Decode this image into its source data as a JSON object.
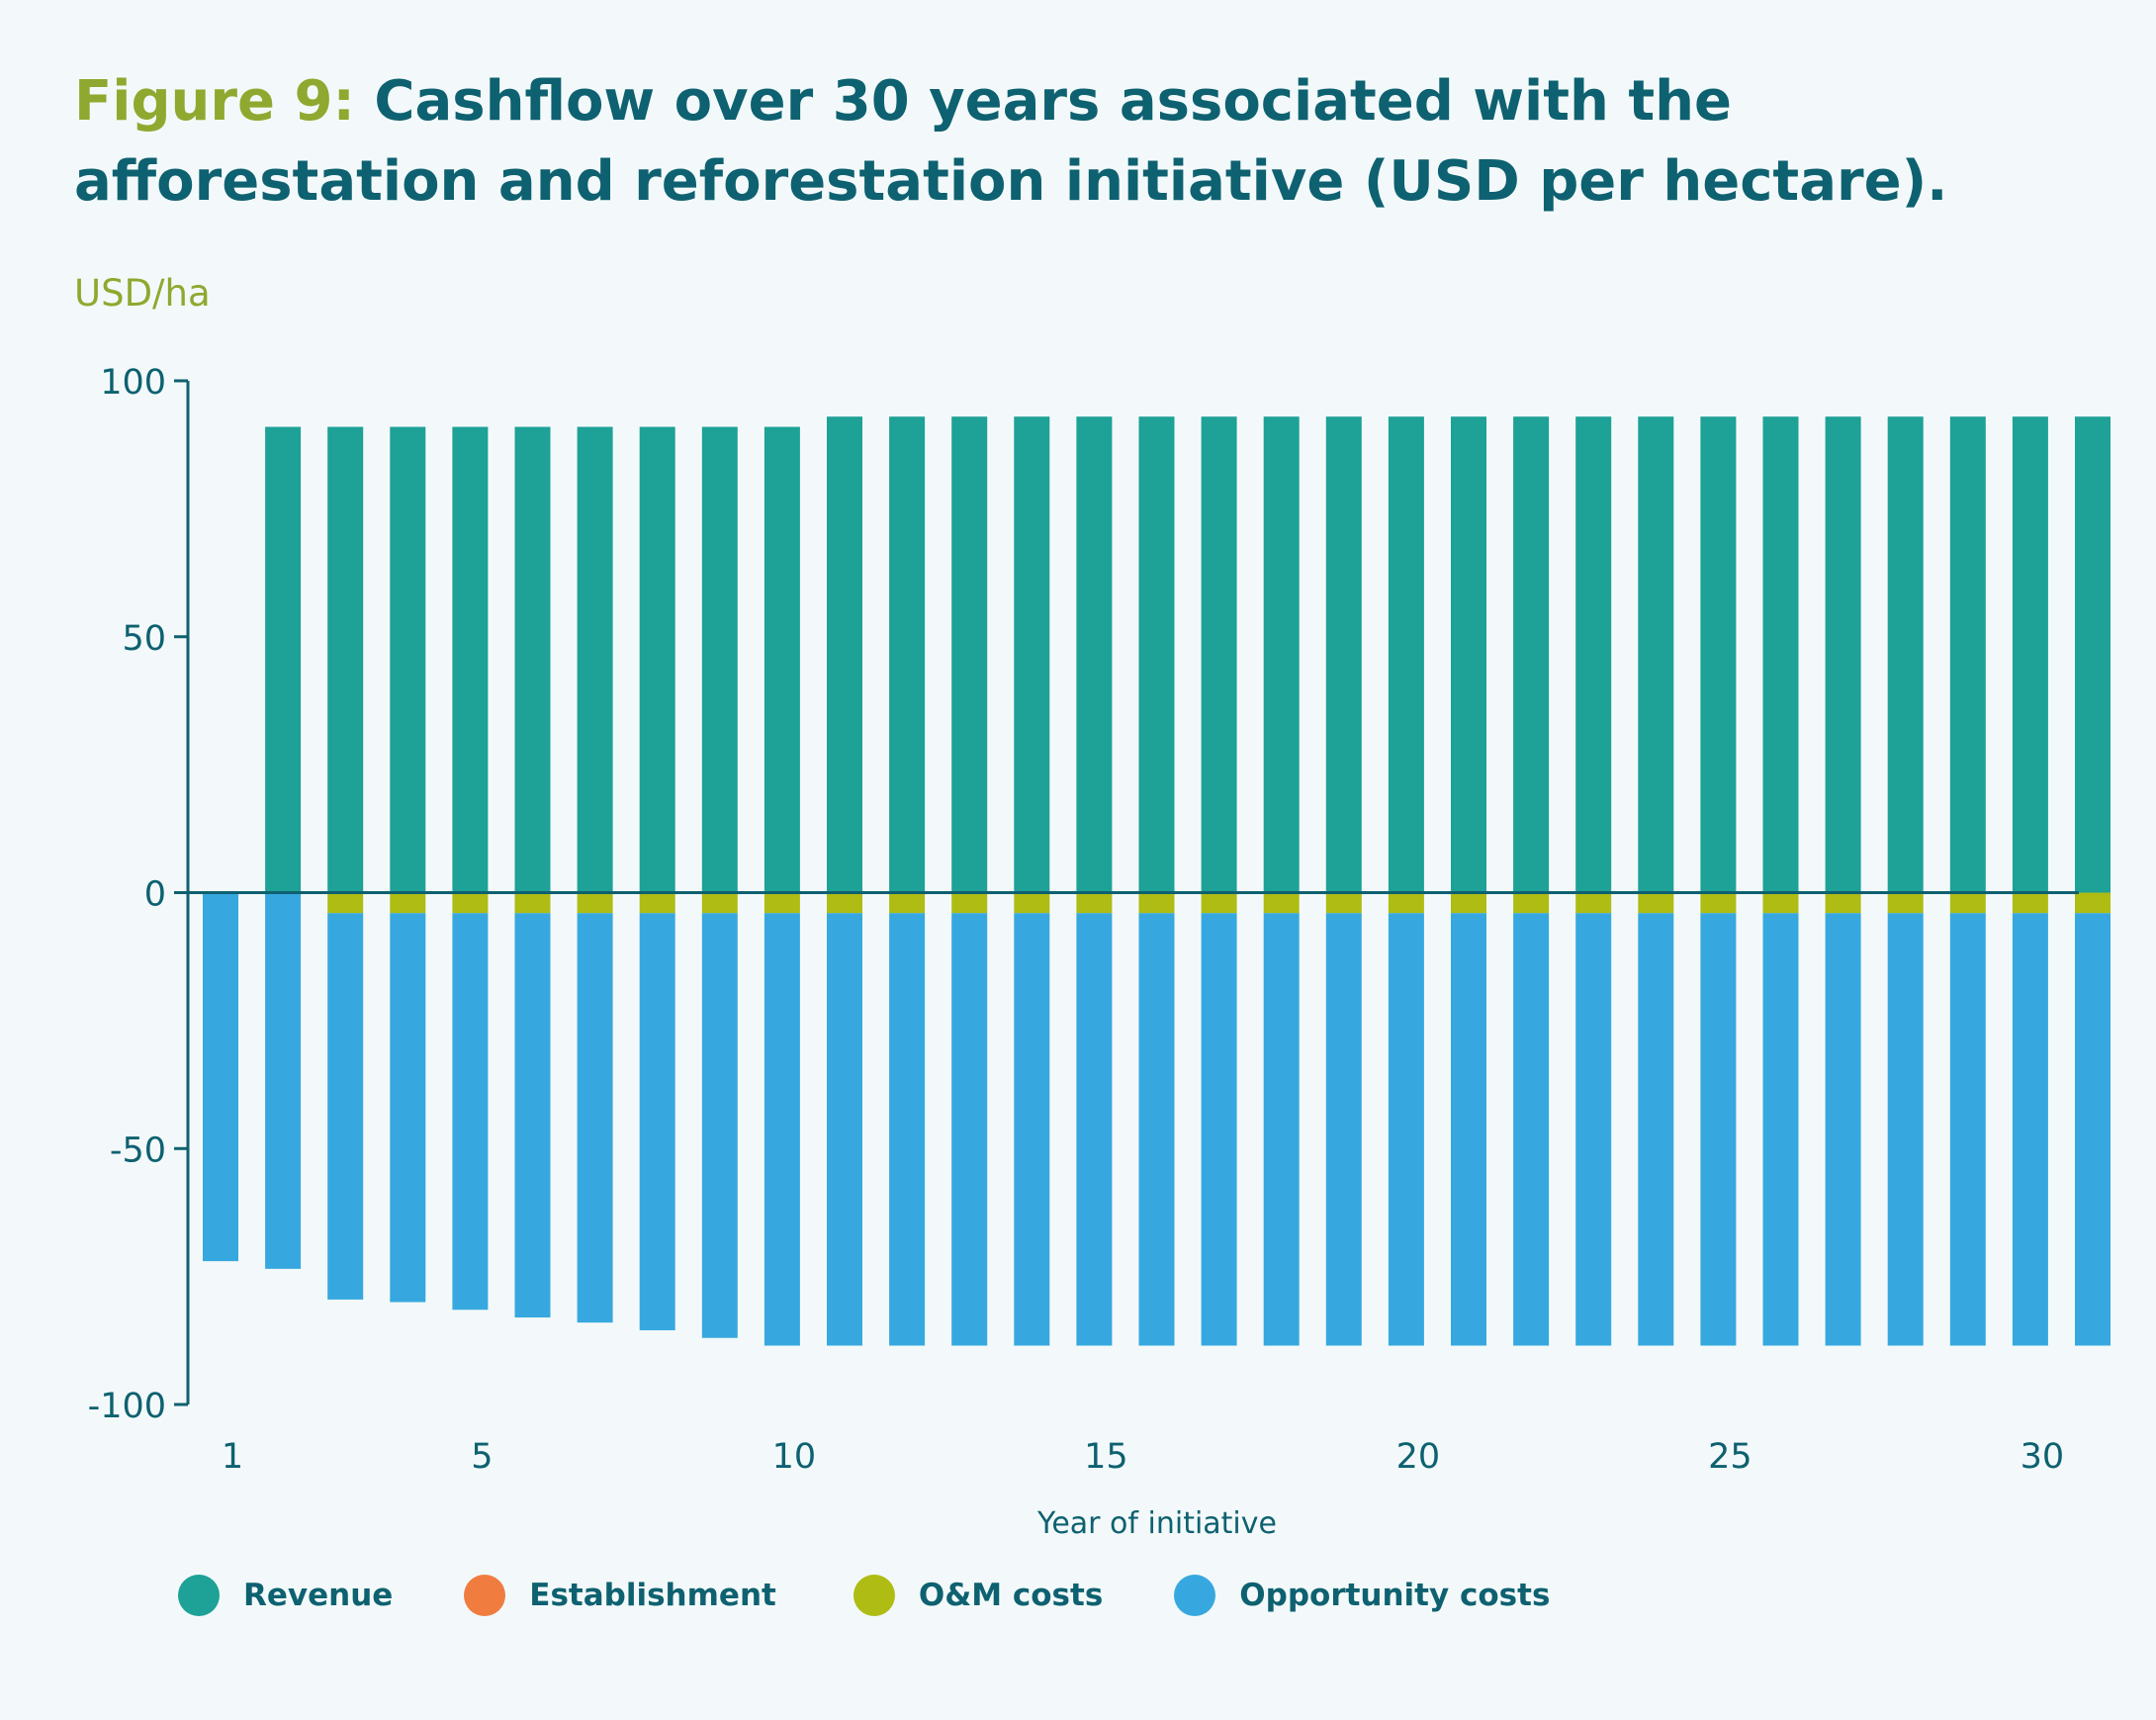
{
  "title": {
    "prefix": "Figure 9:",
    "text": "Cashflow over 30 years associated with the afforestation and reforestation initiative (USD per hectare)."
  },
  "colors": {
    "revenue": "#1ea196",
    "establishment": "#f07c40",
    "om": "#aebc14",
    "opportunity": "#37a8df",
    "axis": "#0e6170",
    "title_accent": "#8fa82f"
  },
  "chart_data": {
    "type": "bar",
    "stacked": true,
    "ylabel": "USD/ha",
    "xlabel": "Year of initiative",
    "ylim": [
      -100,
      100
    ],
    "yticks": [
      100,
      50,
      0,
      -50,
      -100
    ],
    "xticks": [
      1,
      5,
      10,
      15,
      20,
      25,
      30
    ],
    "x": [
      1,
      2,
      3,
      4,
      5,
      6,
      7,
      8,
      9,
      10,
      11,
      12,
      13,
      14,
      15,
      16,
      17,
      18,
      19,
      20,
      21,
      22,
      23,
      24,
      25,
      26,
      27,
      28,
      29,
      30,
      31
    ],
    "series": [
      {
        "name": "Revenue",
        "values": [
          0,
          91,
          91,
          91,
          91,
          91,
          91,
          91,
          91,
          91,
          93,
          93,
          93,
          93,
          93,
          93,
          93,
          93,
          93,
          93,
          93,
          93,
          93,
          93,
          93,
          93,
          93,
          93,
          93,
          93,
          93
        ]
      },
      {
        "name": "Establishment",
        "values": [
          0,
          0,
          0,
          0,
          0,
          0,
          0,
          0,
          0,
          0,
          0,
          0,
          0,
          0,
          0,
          0,
          0,
          0,
          0,
          0,
          0,
          0,
          0,
          0,
          0,
          0,
          0,
          0,
          0,
          0,
          0
        ]
      },
      {
        "name": "O&M costs",
        "values": [
          0,
          0,
          -4,
          -4,
          -4,
          -4,
          -4,
          -4,
          -4,
          -4,
          -4,
          -4,
          -4,
          -4,
          -4,
          -4,
          -4,
          -4,
          -4,
          -4,
          -4,
          -4,
          -4,
          -4,
          -4,
          -4,
          -4,
          -4,
          -4,
          -4,
          -4
        ]
      },
      {
        "name": "Opportunity costs",
        "values": [
          -72,
          -73.5,
          -75.5,
          -76,
          -77.5,
          -79,
          -80,
          -81.5,
          -83,
          -84.5,
          -84.5,
          -84.5,
          -84.5,
          -84.5,
          -84.5,
          -84.5,
          -84.5,
          -84.5,
          -84.5,
          -84.5,
          -84.5,
          -84.5,
          -84.5,
          -84.5,
          -84.5,
          -84.5,
          -84.5,
          -84.5,
          -84.5,
          -84.5,
          -84.5
        ]
      }
    ],
    "legend_position": "bottom-left"
  }
}
